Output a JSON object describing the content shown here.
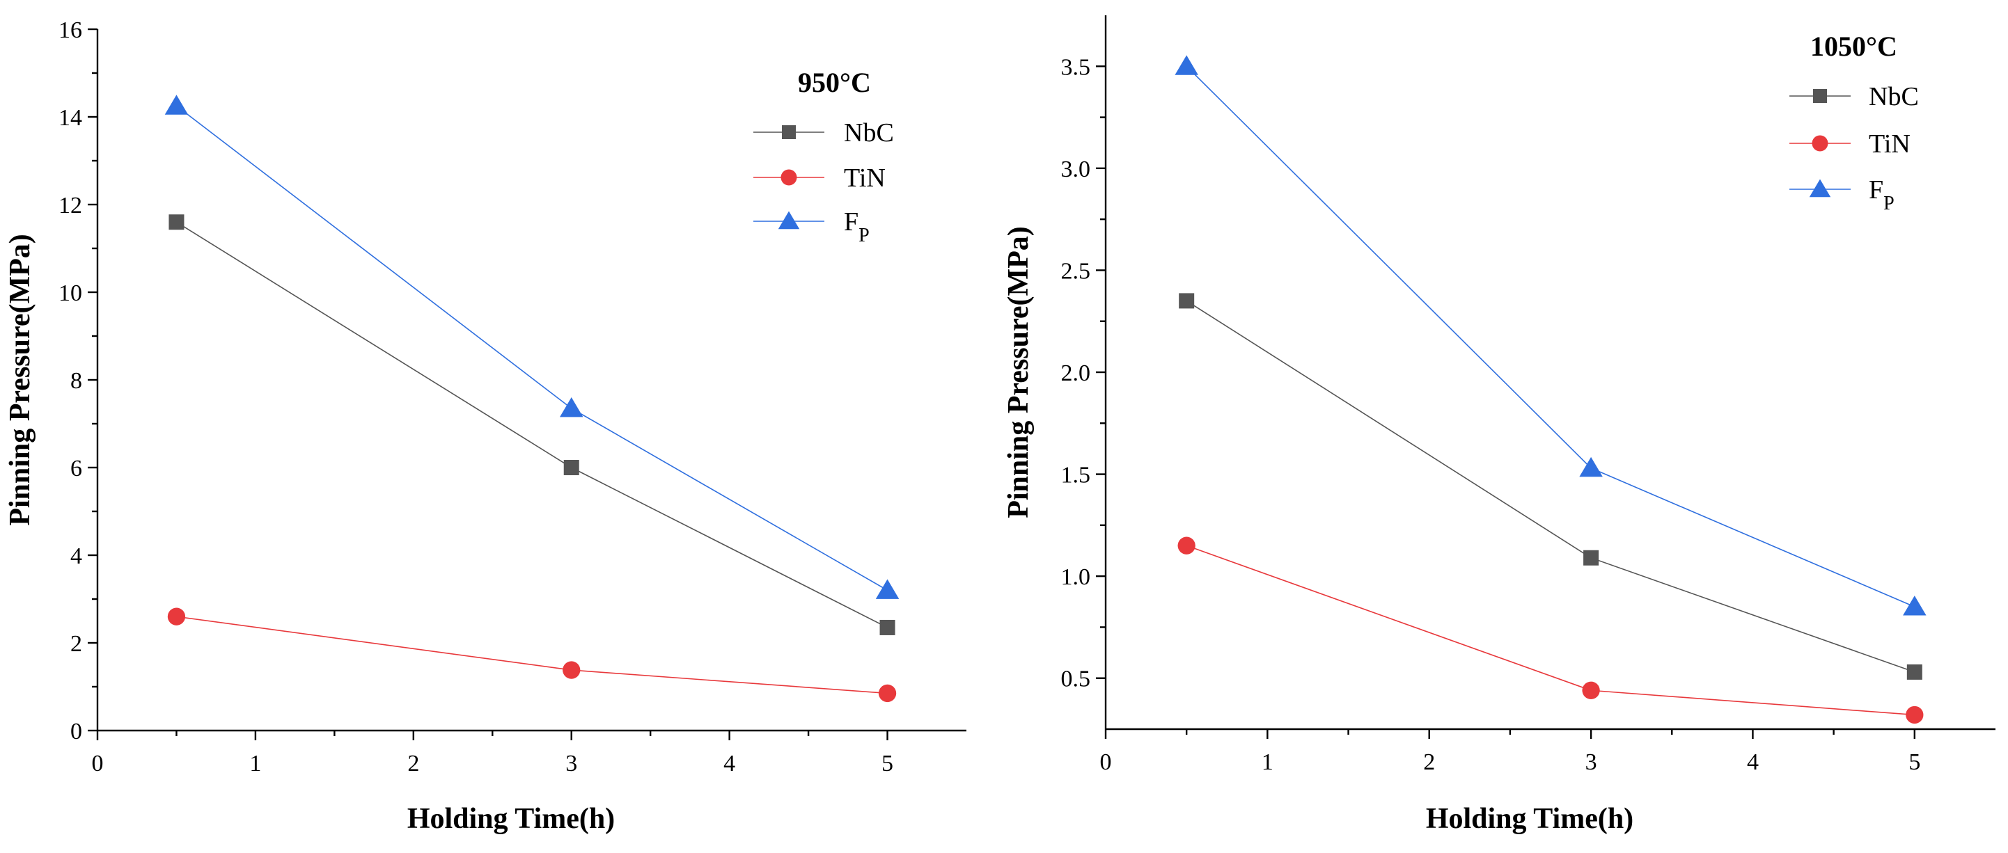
{
  "chart_data": [
    {
      "type": "line",
      "xlabel": "Holding Time(h)",
      "ylabel": "Pinning Pressure(MPa)",
      "xlim": [
        0,
        5.5
      ],
      "ylim": [
        0,
        16
      ],
      "xticks": [
        0,
        1,
        2,
        3,
        4,
        5
      ],
      "xtick_labels": [
        "0",
        "1",
        "2",
        "3",
        "4",
        "5"
      ],
      "yticks": [
        0,
        2,
        4,
        6,
        8,
        10,
        12,
        14,
        16
      ],
      "ytick_labels": [
        "0",
        "2",
        "4",
        "6",
        "8",
        "10",
        "12",
        "14",
        "16"
      ],
      "legend_title": "950°C",
      "legend_position": "top-right",
      "grid": false,
      "x": [
        0.5,
        3,
        5
      ],
      "series": [
        {
          "name": "NbC",
          "marker": "square",
          "color": "#555555",
          "values": [
            11.6,
            6.0,
            2.35
          ]
        },
        {
          "name": "TiN",
          "marker": "circle",
          "color": "#e8393c",
          "values": [
            2.6,
            1.38,
            0.85
          ]
        },
        {
          "name": "F",
          "name_sub": "P",
          "marker": "triangle",
          "color": "#2f6fdf",
          "values": [
            14.25,
            7.35,
            3.2
          ]
        }
      ]
    },
    {
      "type": "line",
      "xlabel": "Holding Time(h)",
      "ylabel": "Pinning Pressure(MPa)",
      "xlim": [
        0,
        5.5
      ],
      "ylim": [
        0.25,
        3.75
      ],
      "xticks": [
        0,
        1,
        2,
        3,
        4,
        5
      ],
      "xtick_labels": [
        "0",
        "1",
        "2",
        "3",
        "4",
        "5"
      ],
      "yticks": [
        0.5,
        1.0,
        1.5,
        2.0,
        2.5,
        3.0,
        3.5
      ],
      "ytick_labels": [
        "0.5",
        "1.0",
        "1.5",
        "2.0",
        "2.5",
        "3.0",
        "3.5"
      ],
      "legend_title": "1050°C",
      "legend_position": "top-right",
      "grid": false,
      "x": [
        0.5,
        3,
        5
      ],
      "series": [
        {
          "name": "NbC",
          "marker": "square",
          "color": "#555555",
          "values": [
            2.35,
            1.09,
            0.53
          ]
        },
        {
          "name": "TiN",
          "marker": "circle",
          "color": "#e8393c",
          "values": [
            1.15,
            0.44,
            0.32
          ]
        },
        {
          "name": "F",
          "name_sub": "P",
          "marker": "triangle",
          "color": "#2f6fdf",
          "values": [
            3.5,
            1.53,
            0.85
          ]
        }
      ]
    }
  ]
}
